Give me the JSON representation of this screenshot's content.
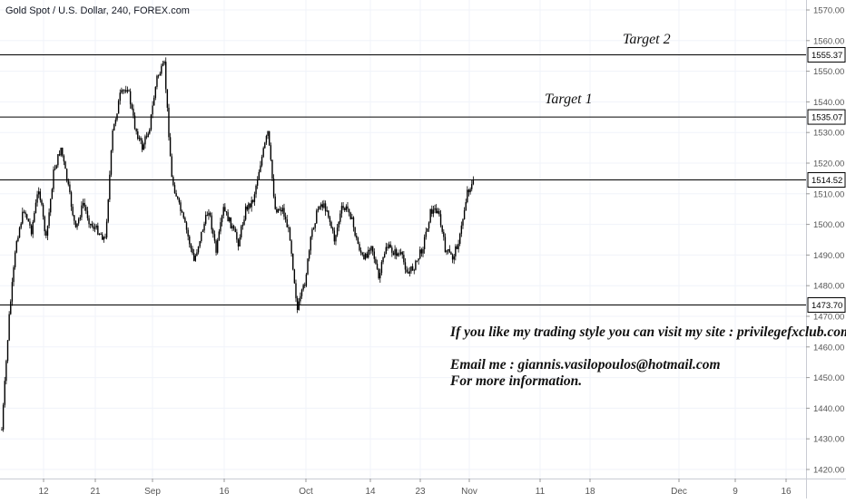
{
  "header": {
    "title": "Gold Spot / U.S. Dollar, 240, FOREX.com"
  },
  "annotations": {
    "target2": "Target 2",
    "target1": "Target 1",
    "promo": "If you like my trading style you can visit my site : privilegefxclub.com",
    "email": "Email me : giannis.vasilopoulos@hotmail.com",
    "more": "For more information."
  },
  "colors": {
    "candle": "#000000",
    "level_line": "#000000",
    "grid": "#f0f3fa",
    "axis_text": "#555555",
    "label_bg": "#ffffff"
  },
  "chart_data": {
    "type": "candlestick",
    "title": "Gold Spot / U.S. Dollar, 240, FOREX.com",
    "ylim": [
      1418,
      1578
    ],
    "y_ticks": [
      1420,
      1430,
      1440,
      1450,
      1460,
      1470,
      1480,
      1490,
      1500,
      1510,
      1520,
      1530,
      1540,
      1550,
      1560,
      1570
    ],
    "x_ticks": [
      "12",
      "21",
      "Sep",
      "16",
      "Oct",
      "14",
      "23",
      "Nov",
      "11",
      "18",
      "Dec",
      "9",
      "16"
    ],
    "horizontal_levels": [
      {
        "value": 1555.37,
        "label": "1555.37"
      },
      {
        "value": 1535.07,
        "label": "1535.07"
      },
      {
        "value": 1514.52,
        "label": "1514.52"
      },
      {
        "value": 1473.7,
        "label": "1473.70"
      }
    ],
    "close_path": [
      {
        "x": "Aug 5",
        "y": 1433
      },
      {
        "x": "Aug 6",
        "y": 1470
      },
      {
        "x": "Aug 7",
        "y": 1495
      },
      {
        "x": "Aug 8",
        "y": 1505
      },
      {
        "x": "Aug 9",
        "y": 1498
      },
      {
        "x": "Aug 12",
        "y": 1512
      },
      {
        "x": "Aug 13",
        "y": 1495
      },
      {
        "x": "Aug 14",
        "y": 1517
      },
      {
        "x": "Aug 15",
        "y": 1525
      },
      {
        "x": "Aug 16",
        "y": 1512
      },
      {
        "x": "Aug 19",
        "y": 1498
      },
      {
        "x": "Aug 20",
        "y": 1507
      },
      {
        "x": "Aug 21",
        "y": 1500
      },
      {
        "x": "Aug 22",
        "y": 1498
      },
      {
        "x": "Aug 23",
        "y": 1495
      },
      {
        "x": "Aug 26",
        "y": 1530
      },
      {
        "x": "Aug 27",
        "y": 1542
      },
      {
        "x": "Aug 28",
        "y": 1545
      },
      {
        "x": "Aug 29",
        "y": 1532
      },
      {
        "x": "Aug 30",
        "y": 1525
      },
      {
        "x": "Sep 2",
        "y": 1532
      },
      {
        "x": "Sep 3",
        "y": 1548
      },
      {
        "x": "Sep 4",
        "y": 1552
      },
      {
        "x": "Sep 5",
        "y": 1515
      },
      {
        "x": "Sep 6",
        "y": 1506
      },
      {
        "x": "Sep 9",
        "y": 1498
      },
      {
        "x": "Sep 10",
        "y": 1488
      },
      {
        "x": "Sep 11",
        "y": 1497
      },
      {
        "x": "Sep 12",
        "y": 1505
      },
      {
        "x": "Sep 13",
        "y": 1491
      },
      {
        "x": "Sep 16",
        "y": 1505
      },
      {
        "x": "Sep 17",
        "y": 1500
      },
      {
        "x": "Sep 18",
        "y": 1494
      },
      {
        "x": "Sep 19",
        "y": 1505
      },
      {
        "x": "Sep 20",
        "y": 1508
      },
      {
        "x": "Sep 23",
        "y": 1520
      },
      {
        "x": "Sep 24",
        "y": 1530
      },
      {
        "x": "Sep 25",
        "y": 1505
      },
      {
        "x": "Sep 26",
        "y": 1505
      },
      {
        "x": "Sep 27",
        "y": 1496
      },
      {
        "x": "Sep 30",
        "y": 1472
      },
      {
        "x": "Oct 1",
        "y": 1481
      },
      {
        "x": "Oct 2",
        "y": 1498
      },
      {
        "x": "Oct 3",
        "y": 1507
      },
      {
        "x": "Oct 4",
        "y": 1505
      },
      {
        "x": "Oct 7",
        "y": 1495
      },
      {
        "x": "Oct 8",
        "y": 1505
      },
      {
        "x": "Oct 9",
        "y": 1505
      },
      {
        "x": "Oct 10",
        "y": 1495
      },
      {
        "x": "Oct 11",
        "y": 1488
      },
      {
        "x": "Oct 14",
        "y": 1494
      },
      {
        "x": "Oct 15",
        "y": 1482
      },
      {
        "x": "Oct 16",
        "y": 1493
      },
      {
        "x": "Oct 17",
        "y": 1491
      },
      {
        "x": "Oct 18",
        "y": 1490
      },
      {
        "x": "Oct 21",
        "y": 1484
      },
      {
        "x": "Oct 22",
        "y": 1487
      },
      {
        "x": "Oct 23",
        "y": 1493
      },
      {
        "x": "Oct 24",
        "y": 1504
      },
      {
        "x": "Oct 25",
        "y": 1505
      },
      {
        "x": "Oct 28",
        "y": 1492
      },
      {
        "x": "Oct 29",
        "y": 1489
      },
      {
        "x": "Oct 30",
        "y": 1496
      },
      {
        "x": "Oct 31",
        "y": 1511
      },
      {
        "x": "Nov 1",
        "y": 1514
      }
    ]
  }
}
